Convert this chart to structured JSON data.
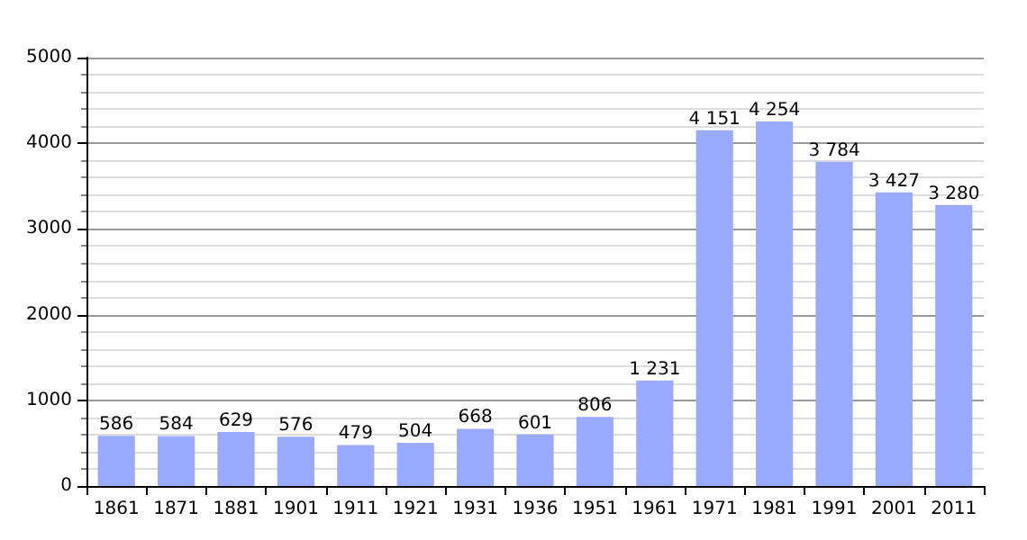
{
  "chart_data": {
    "type": "bar",
    "categories": [
      "1861",
      "1871",
      "1881",
      "1901",
      "1911",
      "1921",
      "1931",
      "1936",
      "1951",
      "1961",
      "1971",
      "1981",
      "1991",
      "2001",
      "2011"
    ],
    "values": [
      586,
      584,
      629,
      576,
      479,
      504,
      668,
      601,
      806,
      1231,
      4151,
      4254,
      3784,
      3427,
      3280
    ],
    "value_labels": [
      "586",
      "584",
      "629",
      "576",
      "479",
      "504",
      "668",
      "601",
      "806",
      "1 231",
      "4 151",
      "4 254",
      "3 784",
      "3 427",
      "3 280"
    ],
    "color": "#99aaff",
    "ylim": [
      0,
      5000
    ],
    "yticks": [
      0,
      1000,
      2000,
      3000,
      4000,
      5000
    ],
    "grid": "y"
  }
}
